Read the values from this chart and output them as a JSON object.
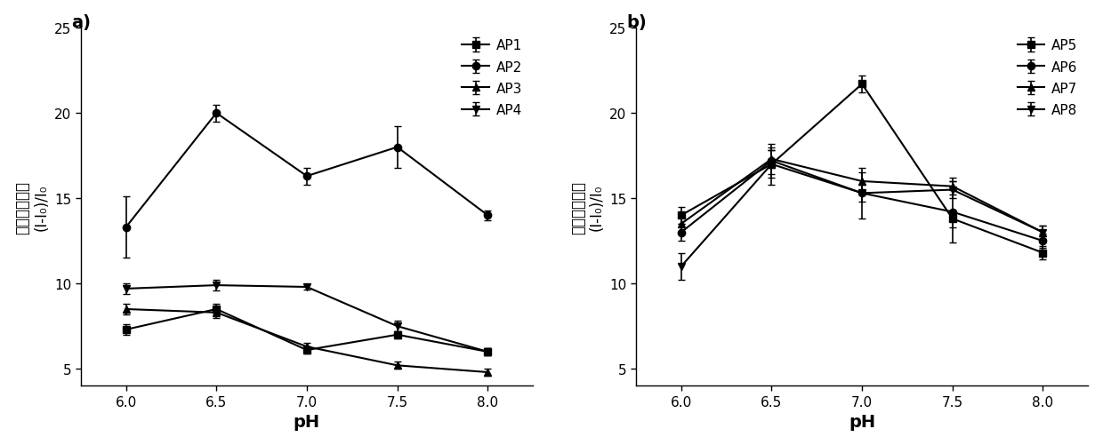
{
  "pH": [
    6.0,
    6.5,
    7.0,
    7.5,
    8.0
  ],
  "panel_a": {
    "title": "a)",
    "AP1": {
      "y": [
        7.3,
        8.5,
        6.1,
        7.0,
        6.0
      ],
      "yerr": [
        0.3,
        0.3,
        0.2,
        0.2,
        0.2
      ]
    },
    "AP2": {
      "y": [
        13.3,
        20.0,
        16.3,
        18.0,
        14.0
      ],
      "yerr": [
        1.8,
        0.5,
        0.5,
        1.2,
        0.3
      ]
    },
    "AP3": {
      "y": [
        8.5,
        8.3,
        6.3,
        5.2,
        4.8
      ],
      "yerr": [
        0.3,
        0.3,
        0.2,
        0.2,
        0.2
      ]
    },
    "AP4": {
      "y": [
        9.7,
        9.9,
        9.8,
        7.5,
        6.0
      ],
      "yerr": [
        0.3,
        0.3,
        0.15,
        0.3,
        0.2
      ]
    }
  },
  "panel_b": {
    "title": "b)",
    "AP5": {
      "y": [
        14.0,
        17.0,
        21.7,
        13.8,
        11.8
      ],
      "yerr": [
        0.5,
        0.8,
        0.5,
        0.5,
        0.4
      ]
    },
    "AP6": {
      "y": [
        13.0,
        17.2,
        15.3,
        14.2,
        12.5
      ],
      "yerr": [
        0.5,
        0.8,
        1.5,
        1.8,
        0.4
      ]
    },
    "AP7": {
      "y": [
        13.5,
        17.3,
        16.0,
        15.7,
        13.0
      ],
      "yerr": [
        0.5,
        0.5,
        0.5,
        0.5,
        0.4
      ]
    },
    "AP8": {
      "y": [
        11.0,
        17.0,
        15.3,
        15.5,
        13.0
      ],
      "yerr": [
        0.8,
        1.2,
        0.5,
        0.5,
        0.4
      ]
    }
  },
  "ylabel_line1": "(I-I₀)/I₀",
  "ylabel_line2": "相对荧光强度",
  "xlabel": "pH",
  "ylim": [
    4,
    25
  ],
  "yticks": [
    5,
    10,
    15,
    20,
    25
  ],
  "color": "#000000",
  "linewidth": 1.5,
  "markersize": 6,
  "capsize": 3,
  "elinewidth": 1.2,
  "font_label": 12,
  "font_tick": 11,
  "font_legend": 11,
  "font_title": 14
}
